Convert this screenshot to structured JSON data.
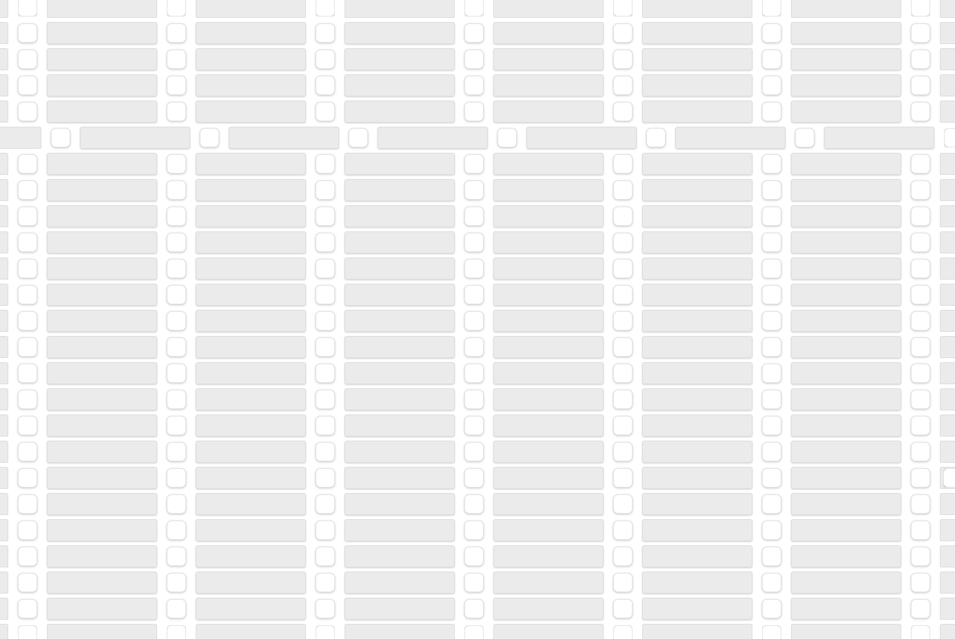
{
  "app": {
    "title": "",
    "description": ""
  },
  "grid": {
    "rows": 25,
    "columns": 7,
    "offset_row": 5,
    "edge_checkbox_row": 18,
    "cell_pattern": [
      "checkbox",
      "text-field"
    ],
    "checkbox_state": "unchecked",
    "field_value": "",
    "field_placeholder": ""
  },
  "colors": {
    "background": "#ffffff",
    "field_fill": "#ebebeb",
    "field_border": "#dcdcdc",
    "checkbox_fill": "#ffffff",
    "checkbox_border": "#e4e4e4"
  }
}
